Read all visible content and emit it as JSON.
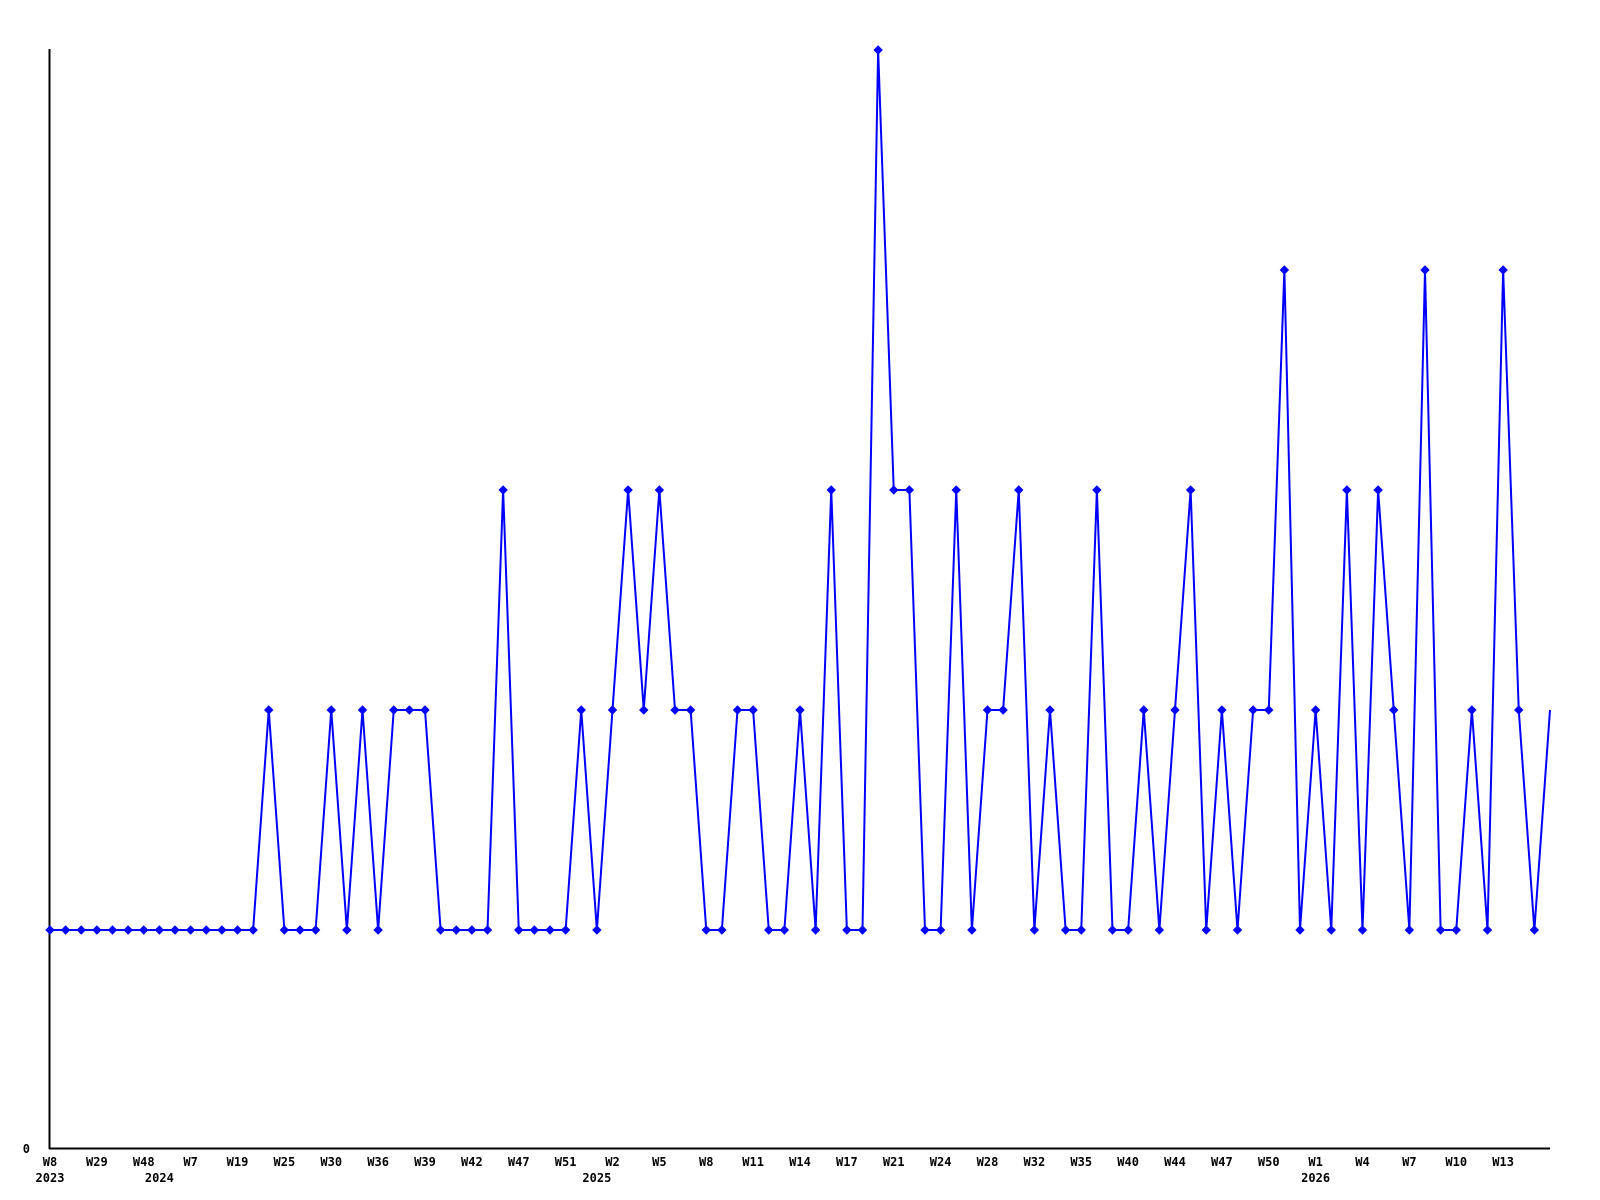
{
  "page": {
    "background_color": "#ffffff"
  },
  "axis": {
    "color": "#000000",
    "zero_label": "0"
  },
  "series": {
    "color": "#0000ff",
    "marker_shape": "diamond"
  },
  "chart_data": {
    "type": "line",
    "title": "",
    "xlabel": "",
    "ylabel": "",
    "ylim": [
      0,
      5
    ],
    "grid": false,
    "legend": null,
    "x_axis_kind": "weekly-categorical",
    "tick_stride_points": 3,
    "x_tick_labels": [
      "W8",
      "W29",
      "W48",
      "W7",
      "W19",
      "W25",
      "W30",
      "W36",
      "W39",
      "W42",
      "W47",
      "W51",
      "W2",
      "W5",
      "W8",
      "W11",
      "W14",
      "W17",
      "W21",
      "W24",
      "W28",
      "W32",
      "W35",
      "W40",
      "W44",
      "W47",
      "W50",
      "W1",
      "W4",
      "W7",
      "W10",
      "W13"
    ],
    "year_labels": [
      {
        "label": "2023",
        "point_index": 0
      },
      {
        "label": "2024",
        "point_index": 7
      },
      {
        "label": "2025",
        "point_index": 35
      },
      {
        "label": "2026",
        "point_index": 81
      }
    ],
    "y_zero_label": "0",
    "values": [
      1,
      1,
      1,
      1,
      1,
      1,
      1,
      1,
      1,
      1,
      1,
      1,
      1,
      1,
      2,
      1,
      1,
      1,
      2,
      1,
      2,
      1,
      2,
      2,
      2,
      1,
      1,
      1,
      1,
      3,
      1,
      1,
      1,
      1,
      2,
      1,
      2,
      3,
      2,
      3,
      2,
      2,
      1,
      1,
      2,
      2,
      1,
      1,
      2,
      1,
      3,
      1,
      1,
      5,
      3,
      3,
      1,
      1,
      3,
      1,
      2,
      2,
      3,
      1,
      2,
      1,
      1,
      3,
      1,
      1,
      2,
      1,
      2,
      3,
      1,
      2,
      1,
      2,
      2,
      4,
      1,
      2,
      1,
      3,
      1,
      3,
      2,
      1,
      4,
      1,
      1,
      2,
      1,
      4,
      2,
      1,
      2
    ]
  }
}
